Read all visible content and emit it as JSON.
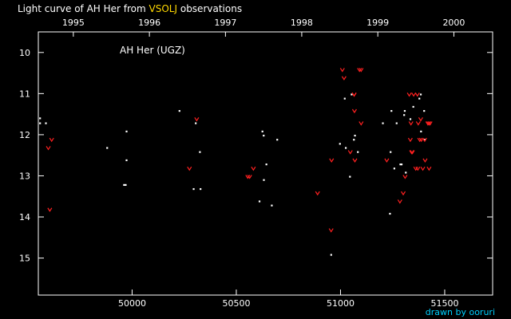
{
  "header": {
    "title_prefix": "Light curve of AH Her from ",
    "source": "VSOLJ",
    "title_suffix": " observations"
  },
  "footer": {
    "credit": "drawn by ooruri"
  },
  "colors": {
    "background": "#000000",
    "axes": "#ffffff",
    "positive": "#ffffff",
    "upper_limit": "#ff2020",
    "source_highlight": "#ffd800",
    "credit": "#00d0ff"
  },
  "chart_data": {
    "type": "scatter",
    "star_label": "AH Her (UGZ)",
    "x_axis": {
      "unit": "JD-2400000",
      "range": [
        49550,
        51730
      ],
      "ticks": [
        50000,
        50500,
        51000,
        51500
      ],
      "tick_labels": [
        "50000",
        "50500",
        "51000",
        "51500"
      ]
    },
    "top_axis": {
      "ticks": [
        49718,
        50083,
        50448,
        50814,
        51179,
        51544
      ],
      "tick_labels": [
        "1995",
        "1996",
        "1997",
        "1998",
        "1999",
        "2000"
      ]
    },
    "y_axis": {
      "range": [
        9.5,
        15.9
      ],
      "inverted": true,
      "ticks": [
        10,
        11,
        12,
        13,
        14,
        15
      ],
      "tick_labels": [
        "10",
        "11",
        "12",
        "13",
        "14",
        "15"
      ]
    },
    "grid": false,
    "series": [
      {
        "kind": "positive",
        "marker": "dot",
        "points": [
          [
            49558,
            11.6
          ],
          [
            49558,
            11.72
          ],
          [
            49586,
            11.72
          ],
          [
            49880,
            12.32
          ],
          [
            49961,
            13.22
          ],
          [
            49969,
            13.22
          ],
          [
            49973,
            11.92
          ],
          [
            49973,
            12.62
          ],
          [
            50227,
            11.42
          ],
          [
            50295,
            13.32
          ],
          [
            50305,
            11.72
          ],
          [
            50325,
            12.42
          ],
          [
            50328,
            13.32
          ],
          [
            50611,
            13.62
          ],
          [
            50625,
            11.92
          ],
          [
            50631,
            12.02
          ],
          [
            50632,
            13.1
          ],
          [
            50644,
            12.72
          ],
          [
            50670,
            13.72
          ],
          [
            50696,
            12.12
          ],
          [
            50955,
            14.92
          ],
          [
            50997,
            12.22
          ],
          [
            51020,
            11.12
          ],
          [
            51025,
            12.32
          ],
          [
            51045,
            13.02
          ],
          [
            51053,
            11.02
          ],
          [
            51064,
            12.12
          ],
          [
            51069,
            12.02
          ],
          [
            51083,
            12.42
          ],
          [
            51203,
            11.72
          ],
          [
            51237,
            13.92
          ],
          [
            51240,
            12.42
          ],
          [
            51244,
            11.42
          ],
          [
            51258,
            12.82
          ],
          [
            51269,
            11.72
          ],
          [
            51287,
            12.72
          ],
          [
            51293,
            12.72
          ],
          [
            51305,
            11.52
          ],
          [
            51308,
            11.42
          ],
          [
            51313,
            12.92
          ],
          [
            51335,
            11.62
          ],
          [
            51349,
            11.32
          ],
          [
            51378,
            11.12
          ],
          [
            51385,
            11.02
          ],
          [
            51386,
            11.92
          ],
          [
            51401,
            11.42
          ],
          [
            51404,
            12.12
          ]
        ]
      },
      {
        "kind": "fainter_than",
        "marker": "v",
        "points": [
          [
            49598,
            12.32
          ],
          [
            49605,
            13.82
          ],
          [
            49614,
            12.12
          ],
          [
            50275,
            12.82
          ],
          [
            50310,
            11.62
          ],
          [
            50555,
            13.02
          ],
          [
            50564,
            13.02
          ],
          [
            50582,
            12.82
          ],
          [
            50890,
            13.42
          ],
          [
            50955,
            14.32
          ],
          [
            50957,
            12.62
          ],
          [
            51009,
            10.42
          ],
          [
            51017,
            10.62
          ],
          [
            51047,
            12.42
          ],
          [
            51065,
            11.02
          ],
          [
            51066,
            11.02
          ],
          [
            51067,
            11.42
          ],
          [
            51069,
            12.62
          ],
          [
            51091,
            10.42
          ],
          [
            51099,
            10.42
          ],
          [
            51099,
            11.72
          ],
          [
            51222,
            12.62
          ],
          [
            51285,
            13.62
          ],
          [
            51301,
            13.42
          ],
          [
            51310,
            13.02
          ],
          [
            51330,
            11.02
          ],
          [
            51335,
            12.12
          ],
          [
            51338,
            11.72
          ],
          [
            51341,
            12.42
          ],
          [
            51345,
            12.42
          ],
          [
            51351,
            11.02
          ],
          [
            51361,
            12.82
          ],
          [
            51369,
            11.02
          ],
          [
            51371,
            12.82
          ],
          [
            51373,
            11.72
          ],
          [
            51380,
            12.12
          ],
          [
            51385,
            11.62
          ],
          [
            51388,
            12.12
          ],
          [
            51395,
            12.82
          ],
          [
            51404,
            12.12
          ],
          [
            51406,
            12.62
          ],
          [
            51419,
            11.72
          ],
          [
            51424,
            11.72
          ],
          [
            51425,
            12.82
          ],
          [
            51430,
            11.72
          ]
        ]
      }
    ]
  }
}
